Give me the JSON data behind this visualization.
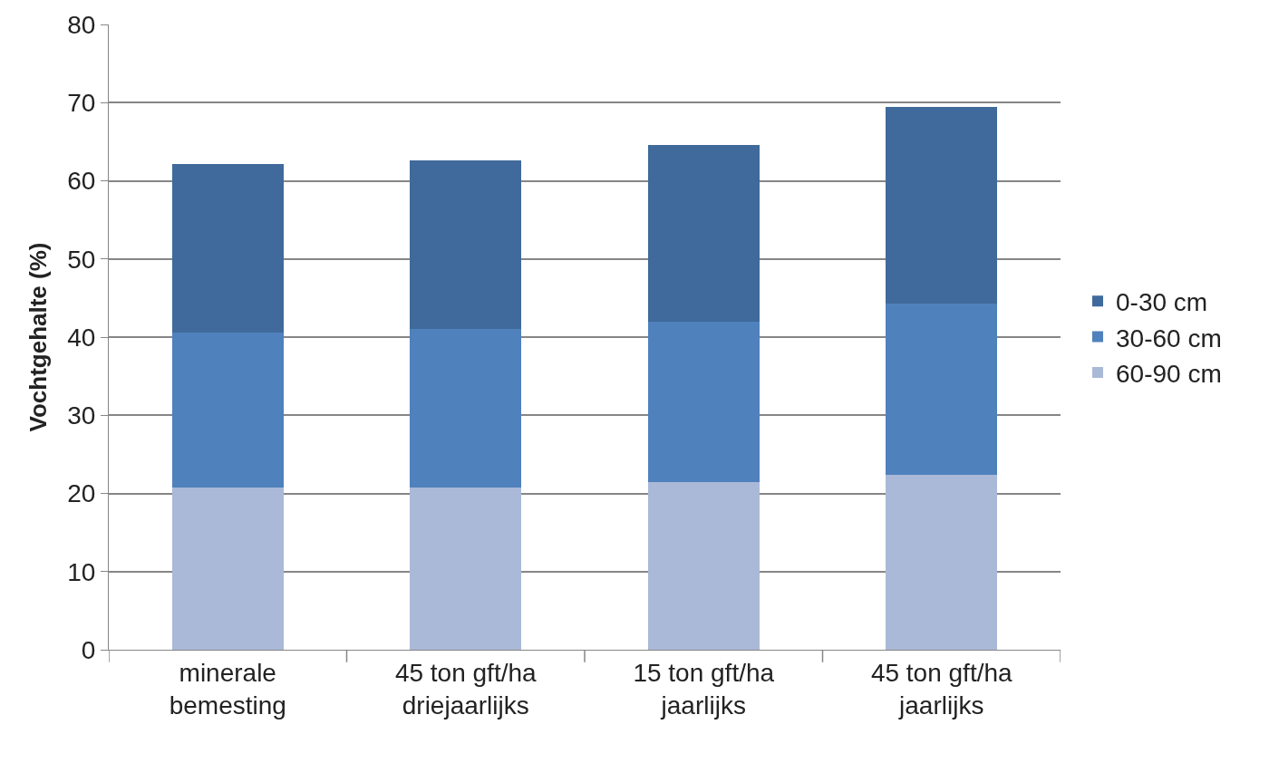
{
  "chart_data": {
    "type": "bar",
    "stacked": true,
    "ylabel": "Vochtgehalte (%)",
    "categories": [
      "minerale bemesting",
      "45 ton gft/ha driejaarlijks",
      "15 ton gft/ha jaarlijks",
      "45 ton gft/ha jaarlijks"
    ],
    "series": [
      {
        "name": "60-90 cm",
        "color": "#aab9d7",
        "values": [
          20.7,
          20.7,
          21.4,
          22.4
        ]
      },
      {
        "name": "30-60 cm",
        "color": "#4f81bd",
        "values": [
          19.9,
          20.4,
          20.6,
          21.9
        ]
      },
      {
        "name": "0-30 cm",
        "color": "#3f6a9b",
        "values": [
          21.5,
          21.5,
          22.6,
          25.1
        ]
      }
    ],
    "ylim": [
      0,
      80
    ],
    "yticks": [
      0,
      10,
      20,
      30,
      40,
      50,
      60,
      70,
      80
    ],
    "grid": "y",
    "legend": "right"
  }
}
